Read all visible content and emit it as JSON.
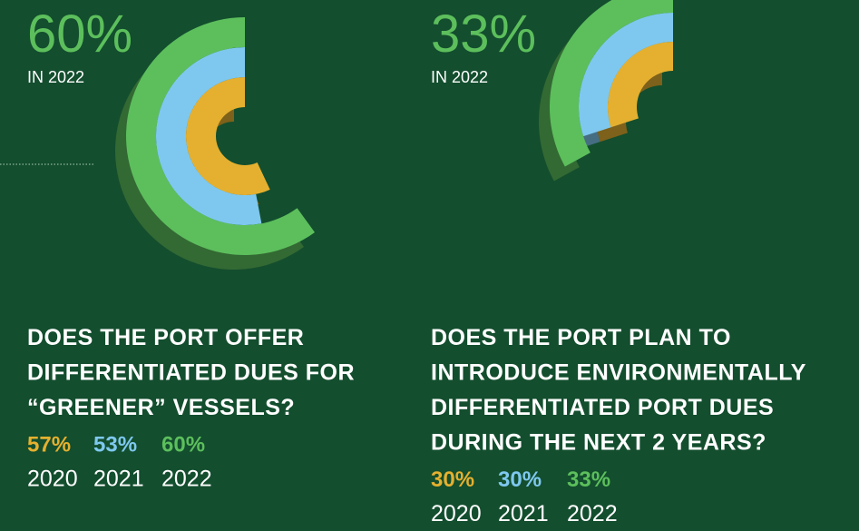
{
  "chart_data": [
    {
      "type": "radial_bar",
      "highlight_label": "IN 2022",
      "title": [
        "DOES THE PORT OFFER",
        "DIFFERENTIATED DUES FOR",
        "“GREENER” VESSELS?"
      ],
      "categories": [
        "2020",
        "2021",
        "2022"
      ],
      "values": [
        57,
        53,
        60
      ],
      "value_labels": [
        "57%",
        "53%",
        "60%"
      ],
      "colors": [
        "#e5b02f",
        "#7ec8ef",
        "#5cbf5c"
      ]
    },
    {
      "type": "radial_bar",
      "highlight_label": "IN 2022",
      "title": [
        "DOES THE PORT PLAN TO",
        "INTRODUCE ENVIRONMENTALLY",
        "DIFFERENTIATED PORT DUES",
        "DURING THE NEXT 2 YEARS?"
      ],
      "categories": [
        "2020",
        "2021",
        "2022"
      ],
      "values": [
        30,
        30,
        33
      ],
      "value_labels": [
        "30%",
        "30%",
        "33%"
      ],
      "colors": [
        "#e5b02f",
        "#7ec8ef",
        "#5cbf5c"
      ]
    }
  ]
}
